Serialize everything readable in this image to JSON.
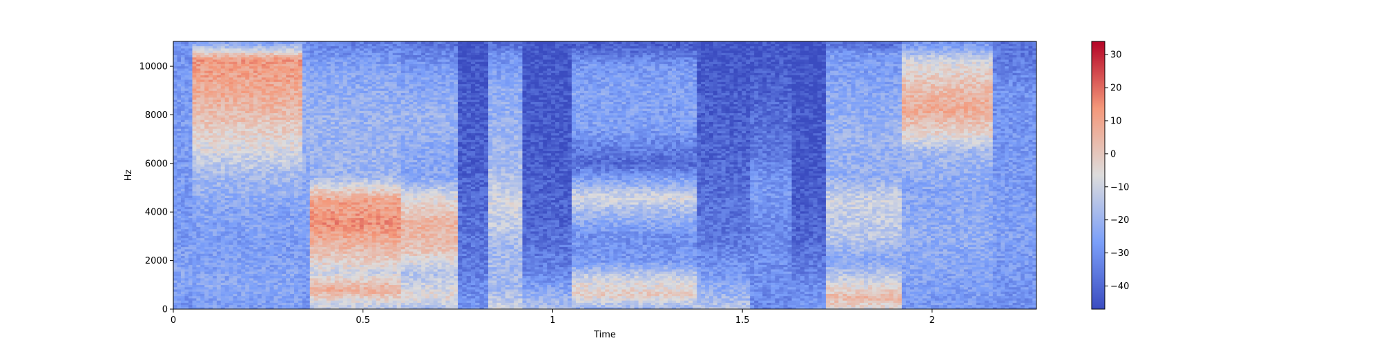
{
  "chart_data": {
    "type": "heatmap",
    "title": "",
    "xlabel": "Time",
    "ylabel": "Hz",
    "xlim": [
      0,
      2.275
    ],
    "ylim": [
      0,
      11025
    ],
    "x_ticks": [
      {
        "value": 0,
        "label": "0"
      },
      {
        "value": 0.5,
        "label": "0.5"
      },
      {
        "value": 1,
        "label": "1"
      },
      {
        "value": 1.5,
        "label": "1.5"
      },
      {
        "value": 2,
        "label": "2"
      }
    ],
    "y_ticks": [
      {
        "value": 0,
        "label": "0"
      },
      {
        "value": 2000,
        "label": "2000"
      },
      {
        "value": 4000,
        "label": "4000"
      },
      {
        "value": 6000,
        "label": "6000"
      },
      {
        "value": 8000,
        "label": "8000"
      },
      {
        "value": 10000,
        "label": "10000"
      }
    ],
    "colorbar": {
      "colormap": "coolwarm",
      "range": [
        -47,
        34
      ],
      "ticks": [
        {
          "value": 30,
          "label": "30"
        },
        {
          "value": 20,
          "label": "20"
        },
        {
          "value": 10,
          "label": "10"
        },
        {
          "value": 0,
          "label": "0"
        },
        {
          "value": -10,
          "label": "−10"
        },
        {
          "value": -20,
          "label": "−20"
        },
        {
          "value": -30,
          "label": "−30"
        },
        {
          "value": -40,
          "label": "−40"
        }
      ]
    },
    "time_segments": [
      {
        "t": [
          0.0,
          0.05
        ],
        "profile": [
          [
            0,
            -30
          ],
          [
            1500,
            -24
          ],
          [
            3000,
            -28
          ],
          [
            6000,
            -27
          ],
          [
            8000,
            -27
          ],
          [
            11025,
            -30
          ]
        ]
      },
      {
        "t": [
          0.05,
          0.34
        ],
        "profile": [
          [
            0,
            -27
          ],
          [
            1000,
            -24
          ],
          [
            2500,
            -27
          ],
          [
            4000,
            -25
          ],
          [
            5500,
            -18
          ],
          [
            6500,
            -8
          ],
          [
            8500,
            6
          ],
          [
            9500,
            10
          ],
          [
            10300,
            12
          ],
          [
            11025,
            -28
          ]
        ]
      },
      {
        "t": [
          0.34,
          0.36
        ],
        "profile": [
          [
            0,
            -28
          ],
          [
            3000,
            -26
          ],
          [
            6000,
            -22
          ],
          [
            9000,
            -20
          ],
          [
            11025,
            -30
          ]
        ]
      },
      {
        "t": [
          0.36,
          0.6
        ],
        "profile": [
          [
            0,
            -14
          ],
          [
            500,
            -2
          ],
          [
            800,
            8
          ],
          [
            1500,
            -10
          ],
          [
            2500,
            4
          ],
          [
            3500,
            14
          ],
          [
            4500,
            10
          ],
          [
            5500,
            -20
          ],
          [
            8000,
            -20
          ],
          [
            10000,
            -25
          ],
          [
            11025,
            -35
          ]
        ]
      },
      {
        "t": [
          0.6,
          0.75
        ],
        "profile": [
          [
            0,
            -18
          ],
          [
            500,
            -5
          ],
          [
            1500,
            -15
          ],
          [
            2500,
            2
          ],
          [
            3500,
            6
          ],
          [
            4500,
            -5
          ],
          [
            5500,
            -25
          ],
          [
            8000,
            -20
          ],
          [
            10000,
            -28
          ],
          [
            11025,
            -38
          ]
        ]
      },
      {
        "t": [
          0.75,
          0.83
        ],
        "profile": [
          [
            0,
            -28
          ],
          [
            2000,
            -36
          ],
          [
            6000,
            -42
          ],
          [
            11025,
            -45
          ]
        ]
      },
      {
        "t": [
          0.83,
          0.92
        ],
        "profile": [
          [
            0,
            -10
          ],
          [
            800,
            -18
          ],
          [
            2500,
            -18
          ],
          [
            4300,
            -8
          ],
          [
            6000,
            -18
          ],
          [
            9000,
            -22
          ],
          [
            10500,
            -30
          ],
          [
            11025,
            -40
          ]
        ]
      },
      {
        "t": [
          0.92,
          1.05
        ],
        "profile": [
          [
            0,
            -15
          ],
          [
            1500,
            -33
          ],
          [
            3500,
            -40
          ],
          [
            6000,
            -43
          ],
          [
            11025,
            -45
          ]
        ]
      },
      {
        "t": [
          1.05,
          1.38
        ],
        "profile": [
          [
            0,
            -20
          ],
          [
            600,
            -2
          ],
          [
            1200,
            -8
          ],
          [
            2000,
            -28
          ],
          [
            3000,
            -30
          ],
          [
            4000,
            -18
          ],
          [
            4600,
            -8
          ],
          [
            5200,
            -22
          ],
          [
            6000,
            -40
          ],
          [
            7500,
            -26
          ],
          [
            9000,
            -25
          ],
          [
            10000,
            -28
          ],
          [
            11025,
            -44
          ]
        ]
      },
      {
        "t": [
          1.38,
          1.52
        ],
        "profile": [
          [
            0,
            -14
          ],
          [
            1500,
            -28
          ],
          [
            3000,
            -36
          ],
          [
            6000,
            -40
          ],
          [
            11025,
            -45
          ]
        ]
      },
      {
        "t": [
          1.52,
          1.63
        ],
        "profile": [
          [
            0,
            -32
          ],
          [
            1500,
            -30
          ],
          [
            3000,
            -32
          ],
          [
            5000,
            -28
          ],
          [
            6500,
            -36
          ],
          [
            11025,
            -45
          ]
        ]
      },
      {
        "t": [
          1.63,
          1.72
        ],
        "profile": [
          [
            0,
            -28
          ],
          [
            3000,
            -40
          ],
          [
            6000,
            -44
          ],
          [
            11025,
            -46
          ]
        ]
      },
      {
        "t": [
          1.72,
          1.92
        ],
        "profile": [
          [
            0,
            -6
          ],
          [
            500,
            4
          ],
          [
            1200,
            -10
          ],
          [
            2000,
            -24
          ],
          [
            3000,
            -14
          ],
          [
            4500,
            -10
          ],
          [
            5500,
            -22
          ],
          [
            7000,
            -20
          ],
          [
            9000,
            -24
          ],
          [
            10500,
            -28
          ],
          [
            11025,
            -40
          ]
        ]
      },
      {
        "t": [
          1.92,
          2.16
        ],
        "profile": [
          [
            0,
            -28
          ],
          [
            3000,
            -22
          ],
          [
            5000,
            -24
          ],
          [
            6500,
            -18
          ],
          [
            7200,
            -4
          ],
          [
            8200,
            8
          ],
          [
            9000,
            4
          ],
          [
            10200,
            -8
          ],
          [
            11025,
            -30
          ]
        ]
      },
      {
        "t": [
          2.16,
          2.275
        ],
        "profile": [
          [
            0,
            -30
          ],
          [
            3000,
            -26
          ],
          [
            6000,
            -28
          ],
          [
            9000,
            -30
          ],
          [
            11025,
            -38
          ]
        ]
      }
    ]
  }
}
